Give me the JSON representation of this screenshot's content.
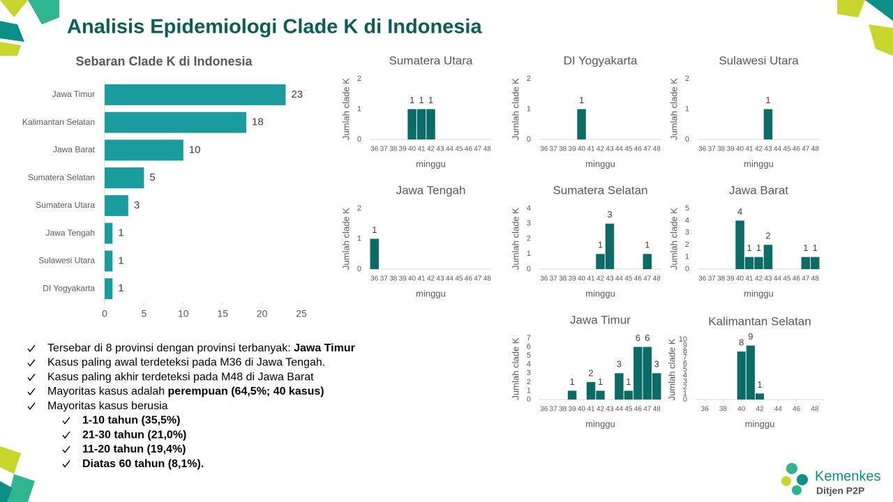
{
  "title": "Analisis Epidemiologi Clade K di Indonesia",
  "chart_data": [
    {
      "type": "hbar",
      "title": "Sebaran Clade K di Indonesia",
      "categories": [
        "Jawa Timur",
        "Kalimantan Selatan",
        "Jawa Barat",
        "Sumatera Selatan",
        "Sumatera Utara",
        "Jawa Tengah",
        "Sulawesi Utara",
        "DI Yogyakarta"
      ],
      "values": [
        23,
        18,
        10,
        5,
        3,
        1,
        1,
        1
      ],
      "xlim": [
        0,
        25
      ],
      "xticks": [
        0,
        5,
        10,
        15,
        20,
        25
      ],
      "color": "#1a9c9c"
    },
    {
      "type": "bar",
      "title": "Sumatera Utara",
      "xlabel": "minggu",
      "ylabel": "Jumlah clade K",
      "categories": [
        "36",
        "37",
        "38",
        "39",
        "40",
        "41",
        "42",
        "43",
        "44",
        "45",
        "46",
        "47",
        "48"
      ],
      "values": [
        null,
        null,
        null,
        null,
        1,
        1,
        1,
        null,
        null,
        null,
        null,
        null,
        null
      ],
      "ylim": [
        0,
        2
      ],
      "yticks": [
        0,
        1,
        2
      ],
      "color": "#0b6b66"
    },
    {
      "type": "bar",
      "title": "DI Yogyakarta",
      "xlabel": "minggu",
      "ylabel": "Jumlah clade K",
      "categories": [
        "36",
        "37",
        "38",
        "39",
        "40",
        "41",
        "42",
        "43",
        "44",
        "45",
        "46",
        "47",
        "48"
      ],
      "values": [
        null,
        null,
        null,
        null,
        1,
        null,
        null,
        null,
        null,
        null,
        null,
        null,
        null
      ],
      "ylim": [
        0,
        2
      ],
      "yticks": [
        0,
        1,
        2
      ],
      "color": "#0b6b66"
    },
    {
      "type": "bar",
      "title": "Sulawesi Utara",
      "xlabel": "minggu",
      "ylabel": "Jumlah clade K",
      "categories": [
        "36",
        "37",
        "38",
        "39",
        "40",
        "41",
        "42",
        "43",
        "44",
        "45",
        "46",
        "47",
        "48"
      ],
      "values": [
        null,
        null,
        null,
        null,
        null,
        null,
        null,
        1,
        null,
        null,
        null,
        null,
        null
      ],
      "ylim": [
        0,
        2
      ],
      "yticks": [
        0,
        1,
        2
      ],
      "color": "#0b6b66"
    },
    {
      "type": "bar",
      "title": "Jawa Tengah",
      "xlabel": "minggu",
      "ylabel": "Jumlah clade K",
      "categories": [
        "36",
        "37",
        "38",
        "39",
        "40",
        "41",
        "42",
        "43",
        "44",
        "45",
        "46",
        "47",
        "48"
      ],
      "values": [
        1,
        null,
        null,
        null,
        null,
        null,
        null,
        null,
        null,
        null,
        null,
        null,
        null
      ],
      "ylim": [
        0,
        2
      ],
      "yticks": [
        0,
        1,
        2
      ],
      "color": "#0b6b66"
    },
    {
      "type": "bar",
      "title": "Sumatera Selatan",
      "xlabel": "minggu",
      "ylabel": "Jumlah clade K",
      "categories": [
        "36",
        "37",
        "38",
        "39",
        "40",
        "41",
        "42",
        "43",
        "44",
        "45",
        "46",
        "47",
        "48"
      ],
      "values": [
        null,
        null,
        null,
        null,
        null,
        null,
        1,
        3,
        null,
        null,
        null,
        1,
        null
      ],
      "ylim": [
        0,
        4
      ],
      "yticks": [
        0,
        1,
        2,
        3,
        4
      ],
      "color": "#0b6b66"
    },
    {
      "type": "bar",
      "title": "Jawa Barat",
      "xlabel": "minggu",
      "ylabel": "Jumlah clade K",
      "categories": [
        "36",
        "37",
        "38",
        "39",
        "40",
        "41",
        "42",
        "43",
        "44",
        "45",
        "46",
        "47",
        "48"
      ],
      "values": [
        null,
        null,
        null,
        null,
        4,
        1,
        1,
        2,
        null,
        null,
        null,
        1,
        1
      ],
      "ylim": [
        0,
        5
      ],
      "yticks": [
        0,
        1,
        2,
        3,
        4,
        5
      ],
      "color": "#0b6b66"
    },
    {
      "type": "bar",
      "title": "Jawa Timur",
      "xlabel": "minggu",
      "ylabel": "Jumlah clade K",
      "categories": [
        "36",
        "37",
        "38",
        "39",
        "40",
        "41",
        "42",
        "43",
        "44",
        "45",
        "46",
        "47",
        "48"
      ],
      "values": [
        null,
        null,
        null,
        1,
        null,
        2,
        1,
        null,
        3,
        1,
        6,
        6,
        3
      ],
      "ylim": [
        0,
        7
      ],
      "yticks": [
        0,
        1,
        2,
        3,
        4,
        5,
        6,
        7
      ],
      "color": "#0b6b66"
    },
    {
      "type": "bar",
      "title": "Kalimantan Selatan",
      "xlabel": "minggu",
      "ylabel": "Jumlah clade K",
      "x": [
        40,
        41,
        42
      ],
      "values": [
        8,
        9,
        1
      ],
      "xlim": [
        35,
        49
      ],
      "xticks": [
        36,
        38,
        40,
        42,
        44,
        46,
        48
      ],
      "ylim": [
        0,
        10
      ],
      "yticks": [
        0,
        1,
        2,
        3,
        4,
        5,
        6,
        7,
        8,
        9,
        10
      ],
      "color": "#0b6b66"
    }
  ],
  "bullets": [
    {
      "text": "Tersebar di 8 provinsi dengan provinsi terbanyak: ",
      "bold": "Jawa Timur"
    },
    {
      "text": "Kasus paling awal terdeteksi pada M36 di Jawa Tengah."
    },
    {
      "text": "Kasus paling akhir terdeteksi pada M48 di Jawa Barat"
    },
    {
      "text": "Mayoritas kasus adalah ",
      "bold": "perempuan (64,5%; 40 kasus)"
    },
    {
      "text": "Mayoritas kasus berusia"
    }
  ],
  "sub_bullets": [
    "1-10 tahun (35,5%)",
    "21-30 tahun (21,0%)",
    "11-20 tahun (19,4%)",
    "Diatas 60 tahun (8,1%)."
  ],
  "logo": {
    "name": "Kemenkes",
    "unit": "Ditjen P2P"
  }
}
